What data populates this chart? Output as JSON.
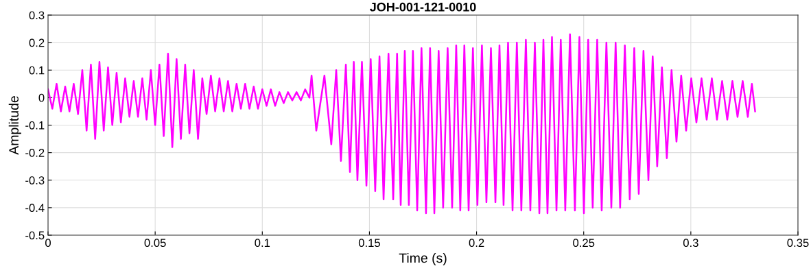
{
  "chart_data": {
    "type": "line",
    "title": "JOH-001-121-0010",
    "xlabel": "Time (s)",
    "ylabel": "Amplitude",
    "xlim": [
      0,
      0.35
    ],
    "xticks": [
      0,
      0.05,
      0.1,
      0.15,
      0.2,
      0.25,
      0.3,
      0.35
    ],
    "ylim": [
      -0.5,
      0.3
    ],
    "yticks": [
      -0.5,
      -0.4,
      -0.3,
      -0.2,
      -0.1,
      0,
      0.1,
      0.2,
      0.3
    ],
    "grid": true,
    "marker": "none",
    "line_style": "solid",
    "series": [
      {
        "color": "#ff00ff",
        "x": [
          0,
          0.002,
          0.004,
          0.006,
          0.008,
          0.01,
          0.012,
          0.014,
          0.016,
          0.018,
          0.02,
          0.022,
          0.024,
          0.026,
          0.028,
          0.03,
          0.032,
          0.034,
          0.036,
          0.038,
          0.04,
          0.042,
          0.044,
          0.046,
          0.048,
          0.05,
          0.052,
          0.054,
          0.056,
          0.058,
          0.06,
          0.062,
          0.064,
          0.066,
          0.068,
          0.07,
          0.072,
          0.074,
          0.076,
          0.078,
          0.08,
          0.082,
          0.084,
          0.086,
          0.088,
          0.09,
          0.092,
          0.094,
          0.096,
          0.098,
          0.1,
          0.102,
          0.104,
          0.106,
          0.108,
          0.11,
          0.112,
          0.114,
          0.116,
          0.118,
          0.12,
          0.122,
          0.123,
          0.1252,
          0.129,
          0.1322,
          0.1345,
          0.1367,
          0.139,
          0.1409,
          0.1427,
          0.1444,
          0.1465,
          0.1486,
          0.1506,
          0.1527,
          0.1547,
          0.1566,
          0.1589,
          0.1611,
          0.1629,
          0.1646,
          0.1665,
          0.1684,
          0.1703,
          0.1723,
          0.1743,
          0.1764,
          0.1783,
          0.1803,
          0.1823,
          0.1844,
          0.1865,
          0.1886,
          0.1905,
          0.1924,
          0.1943,
          0.1963,
          0.1983,
          0.2004,
          0.2025,
          0.2046,
          0.2067,
          0.2088,
          0.2107,
          0.2126,
          0.2147,
          0.2168,
          0.2188,
          0.2209,
          0.223,
          0.2251,
          0.2272,
          0.2293,
          0.2312,
          0.2331,
          0.2352,
          0.2373,
          0.2393,
          0.2414,
          0.2436,
          0.2459,
          0.248,
          0.2501,
          0.2521,
          0.2542,
          0.2563,
          0.2584,
          0.2606,
          0.2629,
          0.2649,
          0.267,
          0.2692,
          0.2715,
          0.2736,
          0.2757,
          0.2779,
          0.2802,
          0.2822,
          0.2843,
          0.2865,
          0.2888,
          0.291,
          0.2933,
          0.2955,
          0.2978,
          0.3002,
          0.3026,
          0.305,
          0.3074,
          0.3098,
          0.3122,
          0.3146,
          0.317,
          0.3194,
          0.3218,
          0.3242,
          0.3266,
          0.3285,
          0.33
        ],
        "values": [
          0.03,
          -0.04,
          0.05,
          -0.05,
          0.04,
          -0.05,
          0.05,
          -0.06,
          0.1,
          -0.12,
          0.12,
          -0.15,
          0.13,
          -0.12,
          0.11,
          -0.1,
          0.09,
          -0.09,
          0.07,
          -0.07,
          0.06,
          -0.07,
          0.07,
          -0.08,
          0.1,
          -0.1,
          0.12,
          -0.14,
          0.16,
          -0.18,
          0.14,
          -0.15,
          0.12,
          -0.13,
          0.1,
          -0.15,
          0.07,
          -0.06,
          0.08,
          -0.05,
          0.07,
          -0.05,
          0.06,
          -0.05,
          0.05,
          -0.04,
          0.05,
          -0.04,
          0.04,
          -0.04,
          0.03,
          -0.03,
          0.03,
          -0.03,
          0.02,
          -0.02,
          0.02,
          -0.01,
          0.02,
          -0.01,
          0.03,
          0.0,
          0.08,
          -0.12,
          0.08,
          -0.17,
          0.1,
          -0.23,
          0.12,
          -0.27,
          0.13,
          -0.3,
          0.13,
          -0.32,
          0.14,
          -0.34,
          0.15,
          -0.37,
          0.16,
          -0.37,
          0.16,
          -0.39,
          0.17,
          -0.39,
          0.17,
          -0.41,
          0.18,
          -0.42,
          0.18,
          -0.42,
          0.17,
          -0.4,
          0.18,
          -0.4,
          0.19,
          -0.41,
          0.19,
          -0.41,
          0.18,
          -0.39,
          0.19,
          -0.38,
          0.18,
          -0.38,
          0.19,
          -0.39,
          0.2,
          -0.41,
          0.2,
          -0.41,
          0.21,
          -0.41,
          0.2,
          -0.42,
          0.21,
          -0.42,
          0.22,
          -0.41,
          0.21,
          -0.41,
          0.23,
          -0.41,
          0.22,
          -0.42,
          0.21,
          -0.4,
          0.21,
          -0.41,
          0.2,
          -0.4,
          0.2,
          -0.4,
          0.19,
          -0.37,
          0.18,
          -0.35,
          0.17,
          -0.3,
          0.15,
          -0.25,
          0.11,
          -0.22,
          0.1,
          -0.16,
          0.08,
          -0.12,
          0.07,
          -0.09,
          0.07,
          -0.08,
          0.07,
          -0.08,
          0.06,
          -0.08,
          0.06,
          -0.07,
          0.06,
          -0.07,
          0.05,
          -0.05
        ]
      }
    ]
  }
}
